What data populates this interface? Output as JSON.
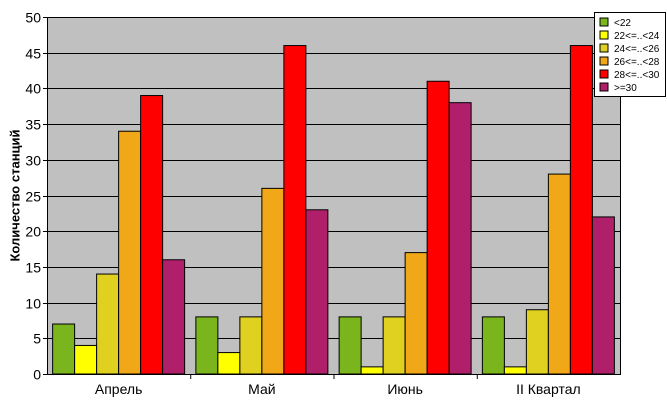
{
  "chart_data": {
    "type": "bar",
    "title": "",
    "xlabel": "",
    "ylabel": "Количество станций",
    "ylim": [
      0,
      50
    ],
    "yticks": [
      0,
      5,
      10,
      15,
      20,
      25,
      30,
      35,
      40,
      45,
      50
    ],
    "grid": true,
    "legend_position": "top-right",
    "plot_background": "#c0c0c0",
    "categories": [
      "Апрель",
      "Май",
      "Июнь",
      "II Квартал"
    ],
    "series": [
      {
        "name": "<22",
        "color": "#7ab51d",
        "values": [
          7,
          8,
          8,
          8
        ]
      },
      {
        "name": "22<=..<24",
        "color": "#ffff00",
        "values": [
          4,
          3,
          1,
          1
        ]
      },
      {
        "name": "24<=..<26",
        "color": "#e0d020",
        "values": [
          14,
          8,
          8,
          9
        ]
      },
      {
        "name": "26<=..<28",
        "color": "#f0a818",
        "values": [
          34,
          26,
          17,
          28
        ]
      },
      {
        "name": "28<=..<30",
        "color": "#ff0000",
        "values": [
          39,
          46,
          41,
          46
        ]
      },
      {
        "name": ">=30",
        "color": "#b0206a",
        "values": [
          16,
          23,
          38,
          22
        ]
      }
    ]
  }
}
